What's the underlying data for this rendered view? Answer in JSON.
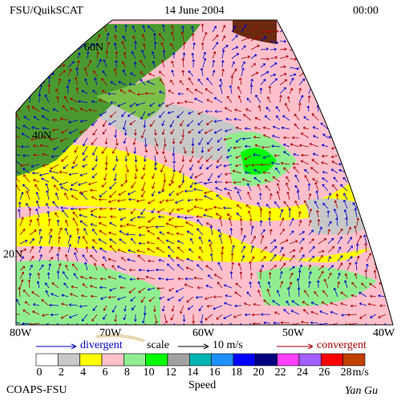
{
  "header": {
    "title": "FSU/QuikSCAT",
    "date": "14 June 2004",
    "time": "00:00"
  },
  "map": {
    "lat_labels": [
      "60N",
      "40N",
      "20N"
    ],
    "lon_labels": [
      "80W",
      "70W",
      "60W",
      "50W",
      "40W"
    ]
  },
  "legend": {
    "divergent": "divergent",
    "scale": "scale",
    "scale_value": "10 m/s",
    "convergent": "convergent"
  },
  "colorbar": {
    "labels": [
      0,
      2,
      4,
      6,
      8,
      10,
      12,
      14,
      16,
      18,
      20,
      22,
      24,
      26,
      28
    ],
    "colors": [
      "#ffffff",
      "#c8c8c8",
      "#ffff00",
      "#ffc0cb",
      "#90ee90",
      "#00ff00",
      "#a0a0a0",
      "#00b4b4",
      "#1e90ff",
      "#0000ff",
      "#000080",
      "#ff40ff",
      "#a060ff",
      "#ff0000",
      "#c04000"
    ],
    "unit": "m/s",
    "title": "Speed"
  },
  "footer": {
    "left": "COAPS-FSU",
    "right": "Yan Gu"
  }
}
